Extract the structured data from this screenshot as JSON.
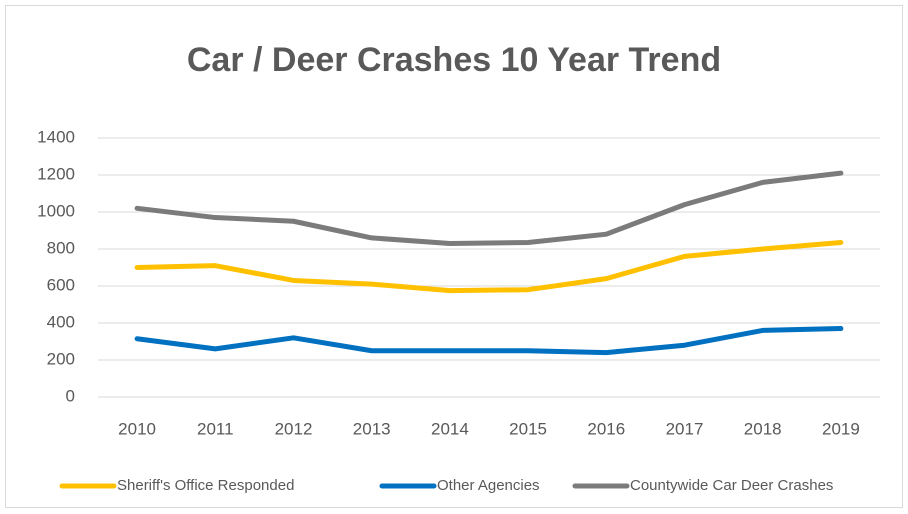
{
  "chart_data": {
    "type": "line",
    "title": "Car / Deer Crashes 10 Year Trend",
    "categories": [
      "2010",
      "2011",
      "2012",
      "2013",
      "2014",
      "2015",
      "2016",
      "2017",
      "2018",
      "2019"
    ],
    "series": [
      {
        "name": "Sheriff's Office Responded",
        "color": "#ffc000",
        "values": [
          700,
          710,
          630,
          610,
          575,
          580,
          640,
          760,
          800,
          835
        ]
      },
      {
        "name": "Other Agencies",
        "color": "#0070c0",
        "values": [
          315,
          260,
          320,
          250,
          250,
          250,
          240,
          280,
          360,
          370
        ]
      },
      {
        "name": "Countywide Car Deer Crashes",
        "color": "#7b7b7b",
        "values": [
          1020,
          970,
          950,
          860,
          830,
          835,
          880,
          1040,
          1160,
          1210
        ]
      }
    ],
    "ylim": [
      0,
      1400
    ],
    "yticks": [
      0,
      200,
      400,
      600,
      800,
      1000,
      1200,
      1400
    ],
    "grid": true,
    "legend": "bottom"
  }
}
